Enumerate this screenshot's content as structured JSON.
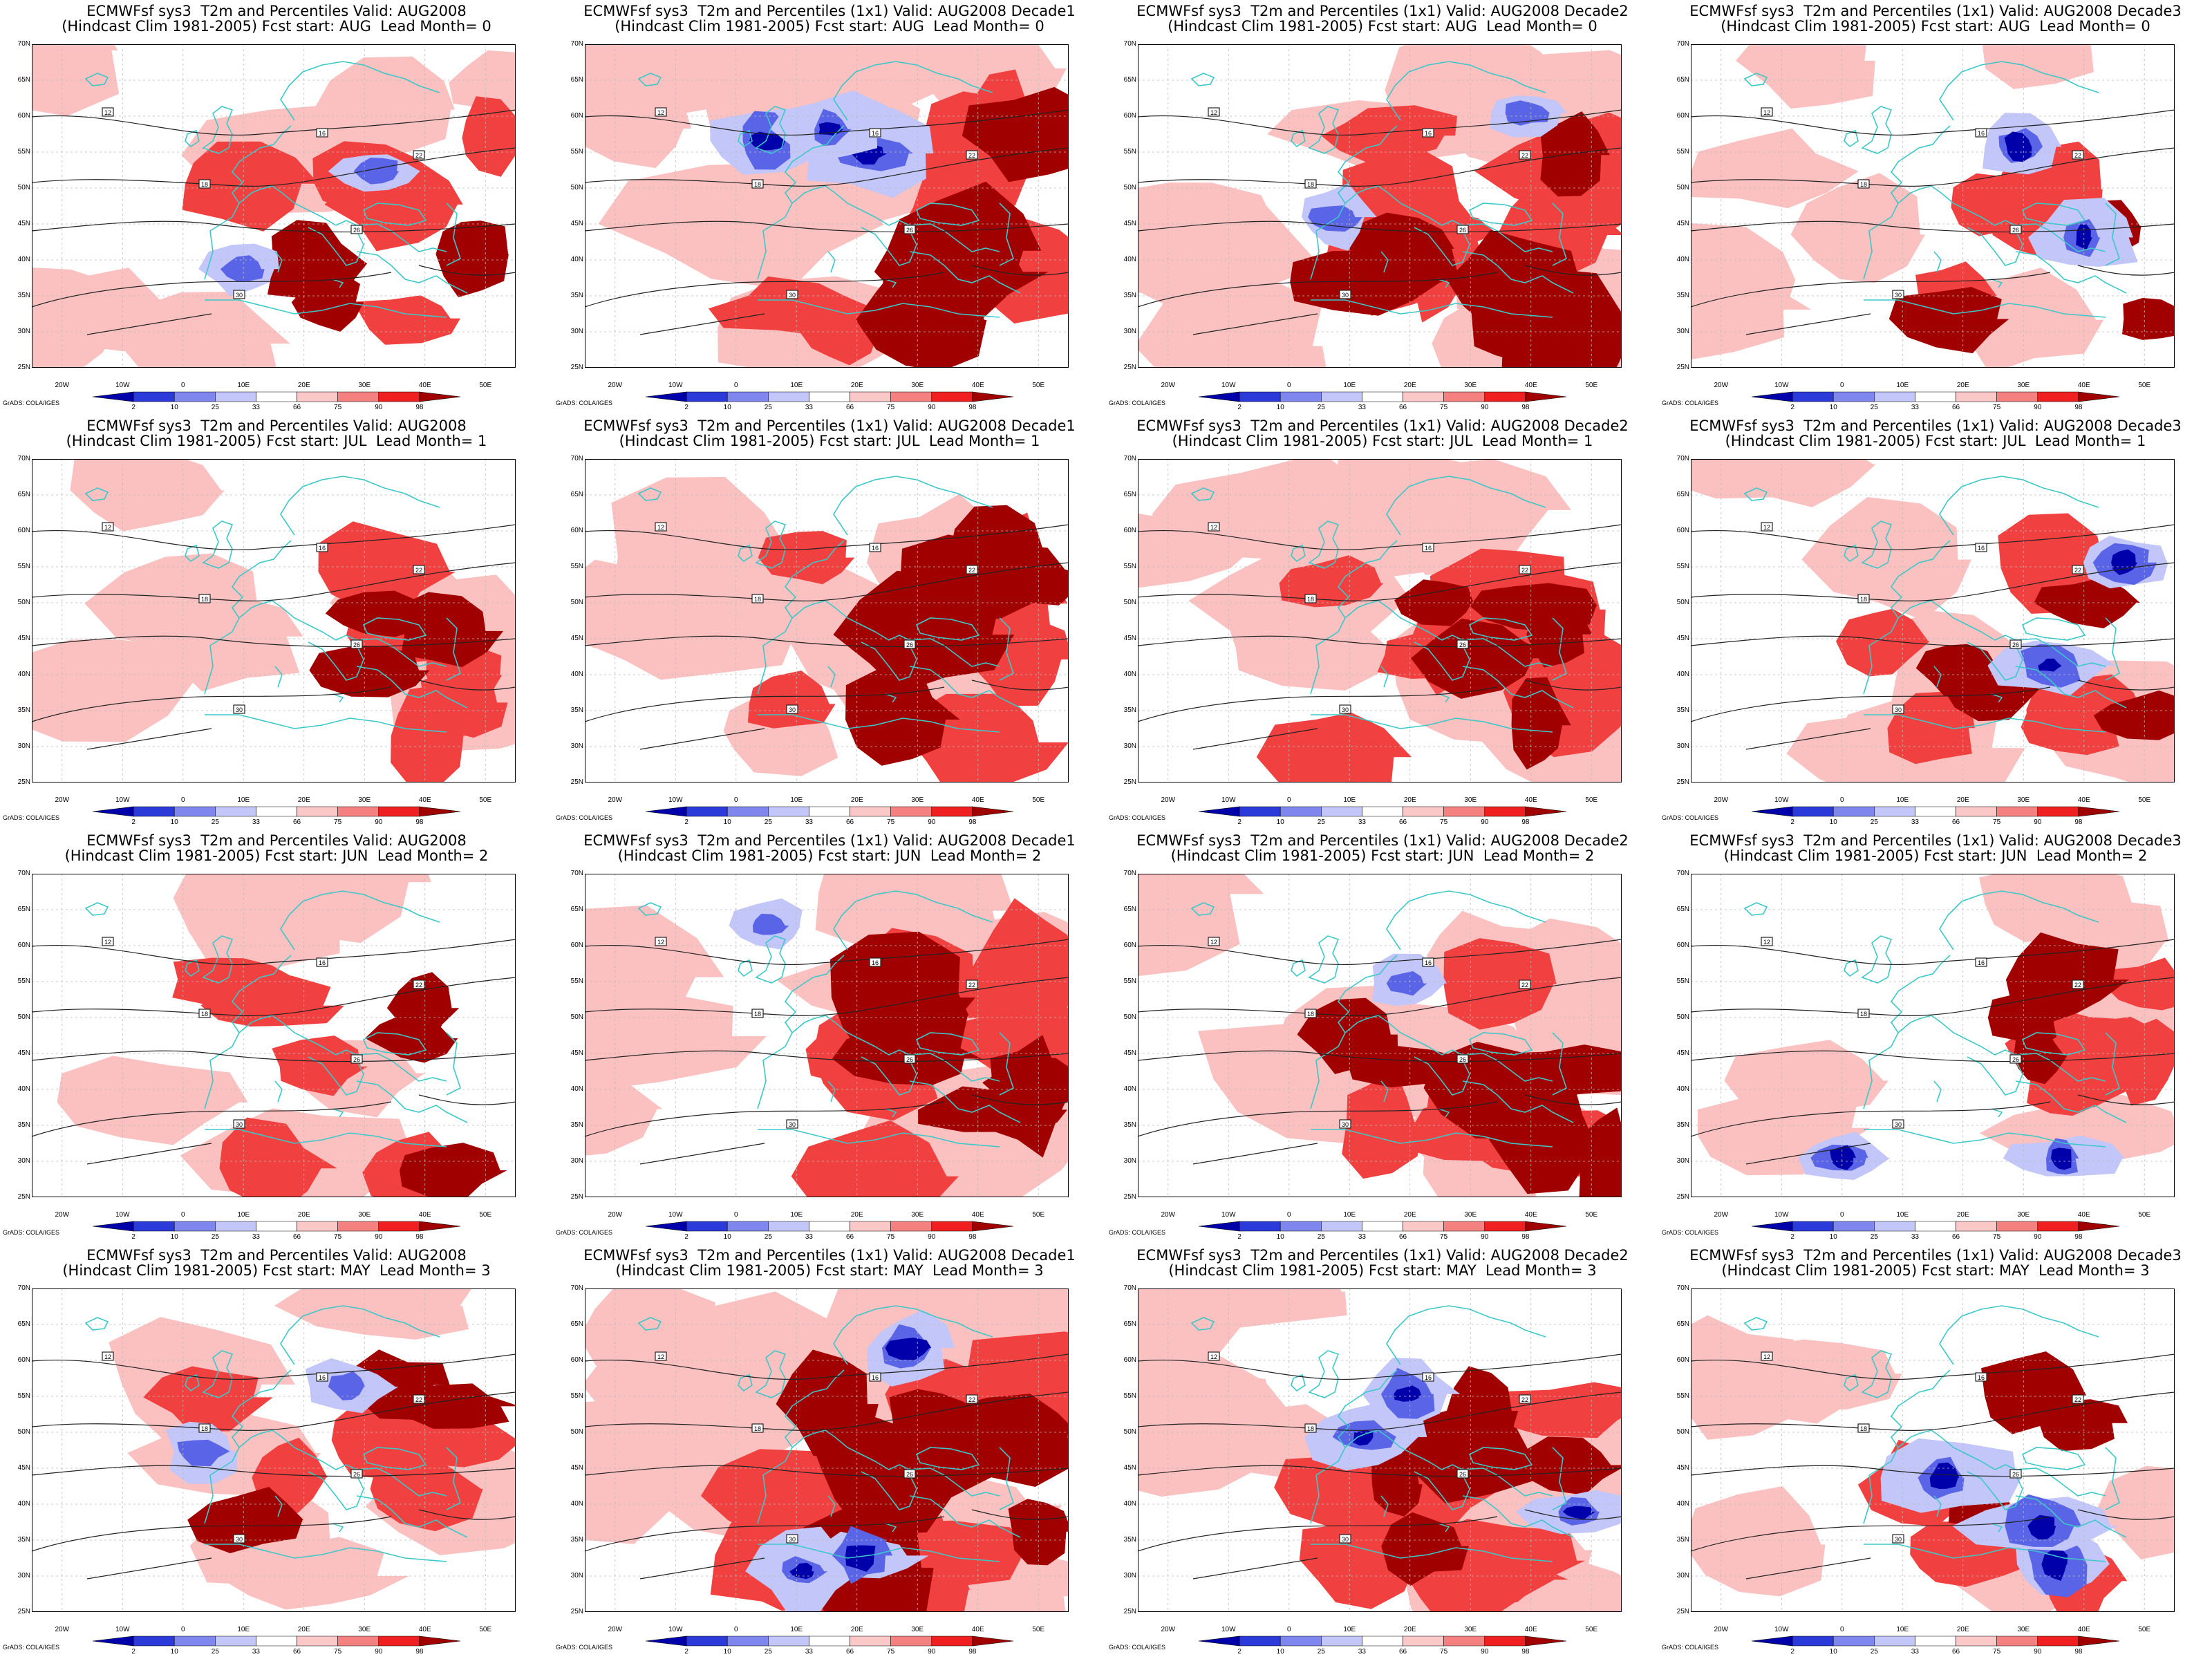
{
  "panels": [
    {
      "title_line1": "ECMWFsf sys3  T2m and Percentiles Valid: AUG2008",
      "title_line2": "(Hindcast Clim 1981-2005) Fcst start: AUG  Lead Month= 0",
      "warm_level": 0.45,
      "cold_level": 0.2,
      "seed": 1
    },
    {
      "title_line1": "ECMWFsf sys3  T2m and Percentiles (1x1) Valid: AUG2008 Decade1",
      "title_line2": "(Hindcast Clim 1981-2005) Fcst start: AUG  Lead Month= 0",
      "warm_level": 0.75,
      "cold_level": 0.55,
      "seed": 2
    },
    {
      "title_line1": "ECMWFsf sys3  T2m and Percentiles (1x1) Valid: AUG2008 Decade2",
      "title_line2": "(Hindcast Clim 1981-2005) Fcst start: AUG  Lead Month= 0",
      "warm_level": 0.8,
      "cold_level": 0.25,
      "seed": 3
    },
    {
      "title_line1": "ECMWFsf sys3  T2m and Percentiles (1x1) Valid: AUG2008 Decade3",
      "title_line2": "(Hindcast Clim 1981-2005) Fcst start: AUG  Lead Month= 0",
      "warm_level": 0.45,
      "cold_level": 0.4,
      "seed": 4
    },
    {
      "title_line1": "ECMWFsf sys3  T2m and Percentiles Valid: AUG2008",
      "title_line2": "(Hindcast Clim 1981-2005) Fcst start: JUL  Lead Month= 1",
      "warm_level": 0.45,
      "cold_level": 0.0,
      "seed": 5
    },
    {
      "title_line1": "ECMWFsf sys3  T2m and Percentiles (1x1) Valid: AUG2008 Decade1",
      "title_line2": "(Hindcast Clim 1981-2005) Fcst start: JUL  Lead Month= 1",
      "warm_level": 0.85,
      "cold_level": 0.0,
      "seed": 6
    },
    {
      "title_line1": "ECMWFsf sys3  T2m and Percentiles (1x1) Valid: AUG2008 Decade2",
      "title_line2": "(Hindcast Clim 1981-2005) Fcst start: JUL  Lead Month= 1",
      "warm_level": 0.75,
      "cold_level": 0.0,
      "seed": 7
    },
    {
      "title_line1": "ECMWFsf sys3  T2m and Percentiles (1x1) Valid: AUG2008 Decade3",
      "title_line2": "(Hindcast Clim 1981-2005) Fcst start: JUL  Lead Month= 1",
      "warm_level": 0.5,
      "cold_level": 0.35,
      "seed": 8
    },
    {
      "title_line1": "ECMWFsf sys3  T2m and Percentiles Valid: AUG2008",
      "title_line2": "(Hindcast Clim 1981-2005) Fcst start: JUN  Lead Month= 2",
      "warm_level": 0.45,
      "cold_level": 0.0,
      "seed": 9
    },
    {
      "title_line1": "ECMWFsf sys3  T2m and Percentiles (1x1) Valid: AUG2008 Decade1",
      "title_line2": "(Hindcast Clim 1981-2005) Fcst start: JUN  Lead Month= 2",
      "warm_level": 0.9,
      "cold_level": 0.1,
      "seed": 10
    },
    {
      "title_line1": "ECMWFsf sys3  T2m and Percentiles (1x1) Valid: AUG2008 Decade2",
      "title_line2": "(Hindcast Clim 1981-2005) Fcst start: JUN  Lead Month= 2",
      "warm_level": 0.8,
      "cold_level": 0.15,
      "seed": 11
    },
    {
      "title_line1": "ECMWFsf sys3  T2m and Percentiles (1x1) Valid: AUG2008 Decade3",
      "title_line2": "(Hindcast Clim 1981-2005) Fcst start: JUN  Lead Month= 2",
      "warm_level": 0.45,
      "cold_level": 0.35,
      "seed": 12
    },
    {
      "title_line1": "ECMWFsf sys3  T2m and Percentiles Valid: AUG2008",
      "title_line2": "(Hindcast Clim 1981-2005) Fcst start: MAY  Lead Month= 3",
      "warm_level": 0.45,
      "cold_level": 0.3,
      "seed": 13
    },
    {
      "title_line1": "ECMWFsf sys3  T2m and Percentiles (1x1) Valid: AUG2008 Decade1",
      "title_line2": "(Hindcast Clim 1981-2005) Fcst start: MAY  Lead Month= 3",
      "warm_level": 0.9,
      "cold_level": 0.5,
      "seed": 14
    },
    {
      "title_line1": "ECMWFsf sys3  T2m and Percentiles (1x1) Valid: AUG2008 Decade2",
      "title_line2": "(Hindcast Clim 1981-2005) Fcst start: MAY  Lead Month= 3",
      "warm_level": 0.75,
      "cold_level": 0.5,
      "seed": 15
    },
    {
      "title_line1": "ECMWFsf sys3  T2m and Percentiles (1x1) Valid: AUG2008 Decade3",
      "title_line2": "(Hindcast Clim 1981-2005) Fcst start: MAY  Lead Month= 3",
      "warm_level": 0.4,
      "cold_level": 0.7,
      "seed": 16
    }
  ],
  "lat_labels": [
    "70N",
    "65N",
    "60N",
    "55N",
    "50N",
    "45N",
    "40N",
    "35N",
    "30N",
    "25N"
  ],
  "lon_labels": [
    "20W",
    "10W",
    "0",
    "10E",
    "20E",
    "30E",
    "40E",
    "50E"
  ],
  "colorbar": {
    "labels": [
      "2",
      "10",
      "25",
      "33",
      "66",
      "75",
      "90",
      "98"
    ],
    "colors": [
      "#0000aa",
      "#2b3bd9",
      "#7f86ee",
      "#c3c6f8",
      "#ffffff",
      "#fbc8c8",
      "#f48080",
      "#f02020",
      "#a10000"
    ]
  },
  "credit": "GrADS: COLA/IGES",
  "contour_labels": [
    "12",
    "16",
    "18",
    "22",
    "26",
    "30"
  ],
  "colors": {
    "coast": "#3cc8c8",
    "contour": "#222222",
    "grid": "#bbbbbb",
    "warm_dark": "#a10000",
    "warm_mid": "#f04040",
    "warm_light": "#fbc0c0",
    "cold_light": "#c3c6f8",
    "cold_mid": "#5a64e6",
    "cold_dark": "#0000aa"
  }
}
